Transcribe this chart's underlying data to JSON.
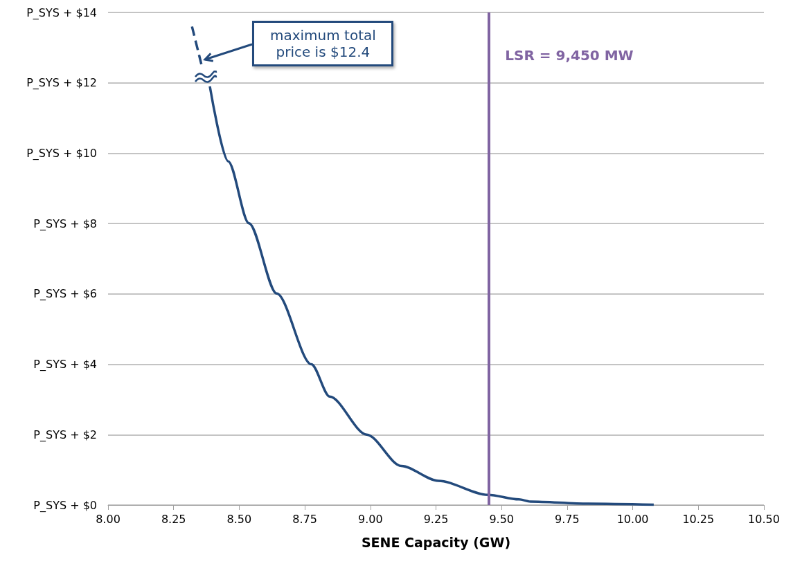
{
  "chart_data": {
    "type": "line",
    "xlabel": "SENE Capacity (GW)",
    "marker": "none",
    "grid": "y",
    "xlim": [
      8,
      10.5
    ],
    "xticks": [
      {
        "value": 8,
        "label": "8.00"
      },
      {
        "value": 8.25,
        "label": "8.25"
      },
      {
        "value": 8.5,
        "label": "8.50"
      },
      {
        "value": 8.75,
        "label": "8.75"
      },
      {
        "value": 9,
        "label": "9.00"
      },
      {
        "value": 9.25,
        "label": "9.25"
      },
      {
        "value": 9.5,
        "label": "9.50"
      },
      {
        "value": 9.75,
        "label": "9.75"
      },
      {
        "value": 10,
        "label": "10.00"
      },
      {
        "value": 10.25,
        "label": "10.25"
      },
      {
        "value": 10.5,
        "label": "10.50"
      }
    ],
    "ylim": [
      0,
      14
    ],
    "yticks": [
      {
        "value": 0,
        "label": "P_SYS + $0"
      },
      {
        "value": 2,
        "label": "P_SYS + $2"
      },
      {
        "value": 4,
        "label": "P_SYS + $4"
      },
      {
        "value": 6,
        "label": "P_SYS + $6"
      },
      {
        "value": 8,
        "label": "P_SYS + $8"
      },
      {
        "value": 10,
        "label": "P_SYS + $10"
      },
      {
        "value": 12,
        "label": "P_SYS + $12"
      },
      {
        "value": 14,
        "label": "P_SYS + $14"
      }
    ],
    "series": [
      {
        "color": "#234a7c",
        "line_style": "solid",
        "x": [
          8.388,
          8.458,
          8.537,
          8.643,
          8.775,
          8.845,
          8.986,
          9.118,
          9.259,
          9.448,
          9.566,
          9.61,
          9.83,
          10.08
        ],
        "values": [
          11.9,
          9.77,
          8.01,
          6.01,
          4.0,
          3.08,
          2.0,
          1.11,
          0.69,
          0.29,
          0.16,
          0.1,
          0.04,
          0.01
        ]
      },
      {
        "color": "#234a7c",
        "line_style": "dashed",
        "x": [
          8.32,
          8.357
        ],
        "values": [
          13.6,
          12.49
        ]
      }
    ],
    "ref_lines": [
      {
        "axis": "x",
        "value": 9.45,
        "label": "LSR = 9,450 MW",
        "color": "#8064a2"
      }
    ],
    "annotations": [
      {
        "text": "maximum total price is $12.4",
        "x": 8.36,
        "y": 12.7
      }
    ]
  }
}
